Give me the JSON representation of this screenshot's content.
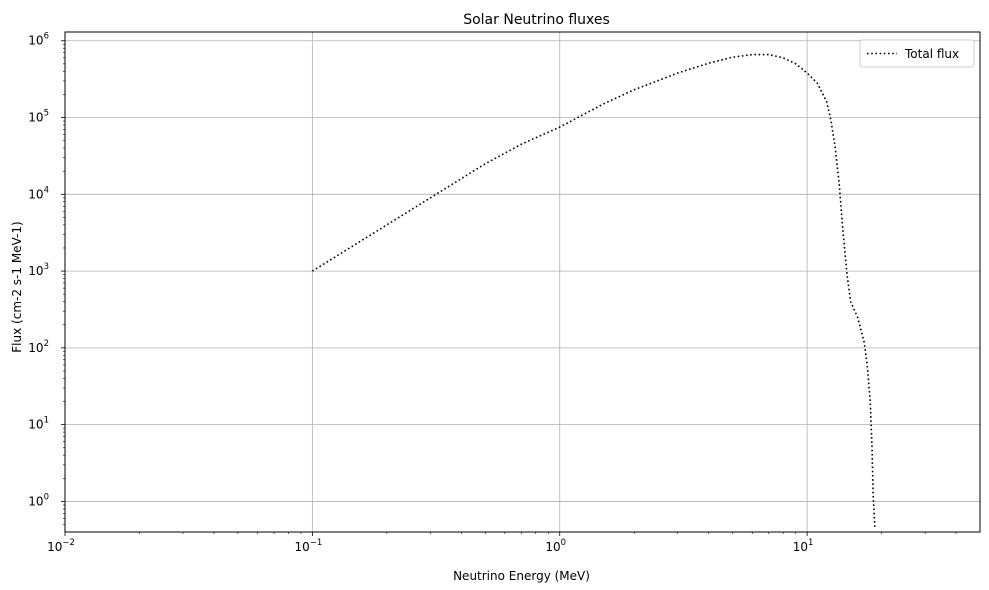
{
  "chart_data": {
    "type": "line",
    "title": "Solar Neutrino fluxes",
    "xlabel": "Neutrino Energy (MeV)",
    "ylabel": "Flux (cm-2 s-1 MeV-1)",
    "xscale": "log",
    "yscale": "log",
    "xlim": [
      0.01,
      50
    ],
    "ylim": [
      0.4,
      1300000
    ],
    "x_ticks": [
      {
        "base": "10",
        "exp": "−2",
        "value": 0.01
      },
      {
        "base": "10",
        "exp": "−1",
        "value": 0.1
      },
      {
        "base": "10",
        "exp": "0",
        "value": 1
      },
      {
        "base": "10",
        "exp": "1",
        "value": 10
      }
    ],
    "y_ticks": [
      {
        "base": "10",
        "exp": "0",
        "value": 1
      },
      {
        "base": "10",
        "exp": "1",
        "value": 10
      },
      {
        "base": "10",
        "exp": "2",
        "value": 100
      },
      {
        "base": "10",
        "exp": "3",
        "value": 1000
      },
      {
        "base": "10",
        "exp": "4",
        "value": 10000
      },
      {
        "base": "10",
        "exp": "5",
        "value": 100000
      },
      {
        "base": "10",
        "exp": "6",
        "value": 1000000
      }
    ],
    "grid": true,
    "legend_position": "top-right",
    "series": [
      {
        "name": "Total flux",
        "color": "#000000",
        "style": "dotted",
        "x": [
          0.1,
          0.2,
          0.3,
          0.5,
          0.7,
          1.0,
          1.5,
          2.0,
          3.0,
          4.0,
          5.0,
          6.0,
          7.0,
          8.0,
          9.0,
          10.0,
          11.0,
          12.0,
          12.5,
          13.0,
          13.5,
          14.0,
          14.5,
          15.0,
          16.0,
          17.0,
          17.5,
          18.0,
          18.3,
          18.5,
          18.8
        ],
        "y": [
          1000,
          4000,
          9000,
          25000,
          45000,
          75000,
          150000,
          230000,
          380000,
          510000,
          610000,
          660000,
          660000,
          600000,
          500000,
          380000,
          280000,
          160000,
          90000,
          40000,
          13000,
          3000,
          900,
          400,
          250,
          120,
          60,
          20,
          5,
          1.2,
          0.45
        ]
      }
    ]
  }
}
